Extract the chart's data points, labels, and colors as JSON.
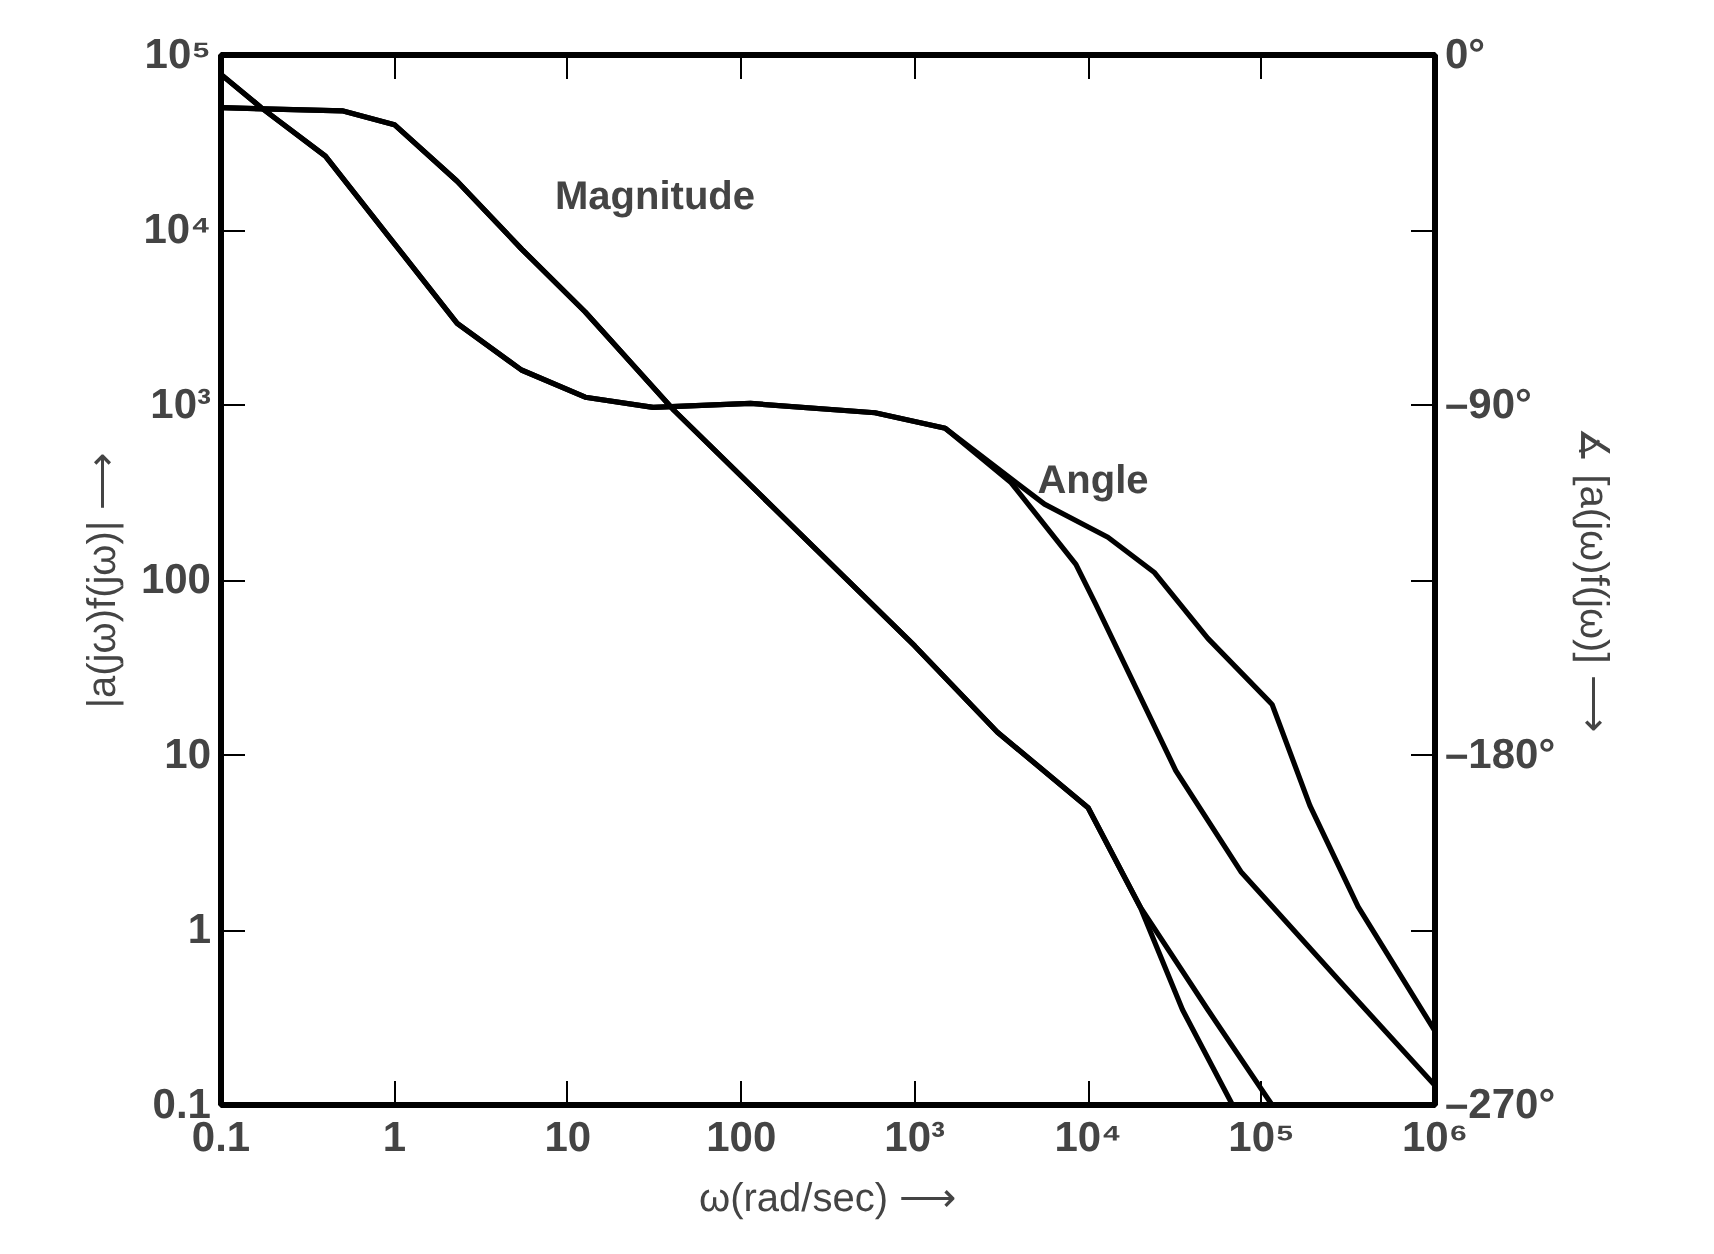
{
  "chart_data": {
    "type": "line",
    "xlabel": "ω(rad/sec) ⟶",
    "ylabel": "|a(jω)f(jω)| ⟶",
    "y2label": "∡ [a(jω)f(jω)] ⟶",
    "log": "xy",
    "grid": false,
    "marker": "none",
    "line_style": "solid",
    "xlim": [
      0.1,
      1000000
    ],
    "xticks": [
      {
        "value": 0.1,
        "label": "0.1"
      },
      1,
      10,
      100,
      {
        "value": 1000,
        "label": "10³"
      },
      {
        "value": 10000,
        "label": "10⁴"
      },
      {
        "value": 100000,
        "label": "10⁵"
      },
      {
        "value": 1000000,
        "label": "10⁶"
      }
    ],
    "ylim": [
      0.1,
      100000
    ],
    "yticks": [
      {
        "value": 0.1,
        "label": "0.1"
      },
      1,
      10,
      100,
      {
        "value": 1000,
        "label": "10³"
      },
      {
        "value": 10000,
        "label": "10⁴"
      },
      {
        "value": 100000,
        "label": "10⁵"
      }
    ],
    "y2lim": [
      -270,
      0
    ],
    "y2ticks": [
      {
        "value": 0,
        "label": "0°"
      },
      {
        "value": -45,
        "label": null
      },
      {
        "value": -90,
        "label": "–90°"
      },
      {
        "value": -135,
        "label": null
      },
      {
        "value": -180,
        "label": "–180°"
      },
      {
        "value": -225,
        "label": null
      },
      {
        "value": -270,
        "label": "–270°"
      }
    ],
    "annotations": [
      "Magnitude",
      "Angle"
    ],
    "series": [
      {
        "color": "#000000",
        "x": [
          0.1,
          0.5,
          1,
          2.3,
          5.4,
          12.6,
          41,
          1000,
          3000,
          10000,
          20000,
          35000,
          68000
        ],
        "values": [
          50000,
          48000,
          40000,
          19000,
          7800,
          3400,
          930,
          42,
          13.5,
          5,
          1.35,
          0.35,
          0.1
        ]
      },
      {
        "color": "#000000",
        "x": [
          0.1,
          0.5,
          1,
          2.3,
          5.4,
          12.6,
          41,
          1000,
          3000,
          10000,
          20000,
          49000,
          115000
        ],
        "values": [
          50000,
          48000,
          40000,
          19000,
          7800,
          3400,
          930,
          42,
          13.5,
          5,
          1.35,
          0.35,
          0.1
        ]
      },
      {
        "color": "#000000",
        "axis": "y2",
        "x": [
          0.1,
          0.17,
          0.4,
          0.94,
          2.3,
          5.4,
          12.6,
          31,
          113,
          590,
          1500,
          3600,
          8500,
          11000,
          32000,
          76000,
          280000,
          1000000
        ],
        "values": [
          -5,
          -13.5,
          -26,
          -47,
          -69,
          -81,
          -88,
          -90.6,
          -89.6,
          -92,
          -96,
          -110,
          -131,
          -141,
          -184,
          -210,
          -238,
          -265
        ]
      },
      {
        "color": "#000000",
        "axis": "y2",
        "x": [
          0.1,
          0.17,
          0.4,
          0.94,
          2.3,
          5.4,
          12.6,
          31,
          113,
          590,
          1500,
          5600,
          13000,
          24000,
          49000,
          115000,
          190000,
          360000,
          1000000
        ],
        "values": [
          -5,
          -13.5,
          -26,
          -47,
          -69,
          -81,
          -88,
          -90.6,
          -89.6,
          -92,
          -96,
          -115.5,
          -124,
          -133,
          -150,
          -167,
          -193,
          -219,
          -251
        ]
      }
    ]
  }
}
